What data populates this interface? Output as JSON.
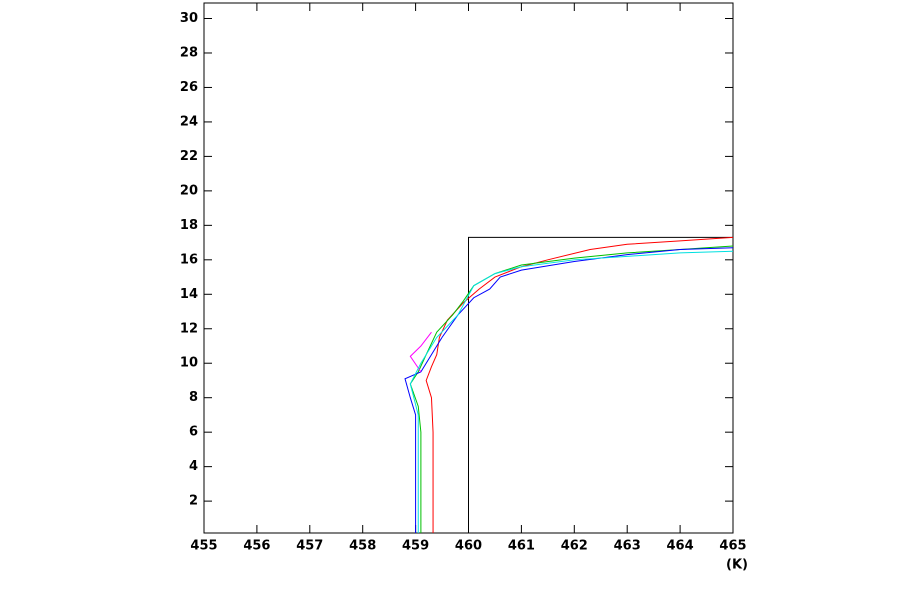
{
  "chart_data": {
    "type": "line",
    "xlabel": "(K)",
    "xlim": [
      455,
      465
    ],
    "xticks": [
      455,
      456,
      457,
      458,
      459,
      460,
      461,
      462,
      463,
      464,
      465
    ],
    "ylim": [
      0.15,
      30.9
    ],
    "yticks": [
      2,
      4,
      6,
      8,
      10,
      12,
      14,
      16,
      18,
      20,
      22,
      24,
      26,
      28,
      30
    ],
    "series": [
      {
        "color": "#000000",
        "x": [
          460,
          460,
          465
        ],
        "values": [
          0.15,
          17.3,
          17.3
        ]
      },
      {
        "color": "#ff0000",
        "x": [
          459.33,
          459.33,
          459.3,
          459.2,
          459.3,
          459.4,
          459.45,
          459.6,
          459.9,
          460.2,
          460.5,
          461,
          461.5,
          462.3,
          463,
          464,
          465
        ],
        "values": [
          0.15,
          6,
          8,
          9,
          9.8,
          10.5,
          11.5,
          12.5,
          13.5,
          14.3,
          15,
          15.6,
          16,
          16.6,
          16.9,
          17.1,
          17.3
        ]
      },
      {
        "color": "#00c000",
        "x": [
          459.1,
          459.1,
          459.05,
          458.9,
          459.05,
          459.2,
          459.4,
          459.7,
          459.9,
          460.1,
          460.5,
          461,
          462,
          463,
          464,
          465
        ],
        "values": [
          0.15,
          6,
          7.5,
          8.8,
          9.5,
          10.5,
          11.8,
          12.8,
          13.6,
          14.5,
          15.2,
          15.7,
          16.1,
          16.4,
          16.6,
          16.8
        ]
      },
      {
        "color": "#0000ff",
        "x": [
          459.0,
          459.0,
          458.9,
          458.8,
          459.1,
          459.3,
          459.5,
          459.8,
          460.1,
          460.4,
          460.6,
          461,
          462,
          463,
          464,
          465
        ],
        "values": [
          0.15,
          7,
          8,
          9.1,
          9.5,
          10.5,
          11.5,
          12.8,
          13.8,
          14.3,
          15,
          15.4,
          15.9,
          16.3,
          16.6,
          16.7
        ]
      },
      {
        "color": "#ff00ff",
        "x": [
          459.1,
          458.9,
          459.1,
          459.3
        ],
        "values": [
          9.5,
          10.4,
          11,
          11.8
        ]
      },
      {
        "color": "#00e0e0",
        "x": [
          459.05,
          459.05,
          458.9,
          459.1,
          459.4,
          459.8,
          460.1,
          460.5,
          461,
          462,
          463,
          464,
          465
        ],
        "values": [
          0.15,
          7,
          8.8,
          10,
          11.5,
          12.8,
          14.5,
          15.2,
          15.6,
          16,
          16.2,
          16.4,
          16.5
        ]
      }
    ]
  }
}
